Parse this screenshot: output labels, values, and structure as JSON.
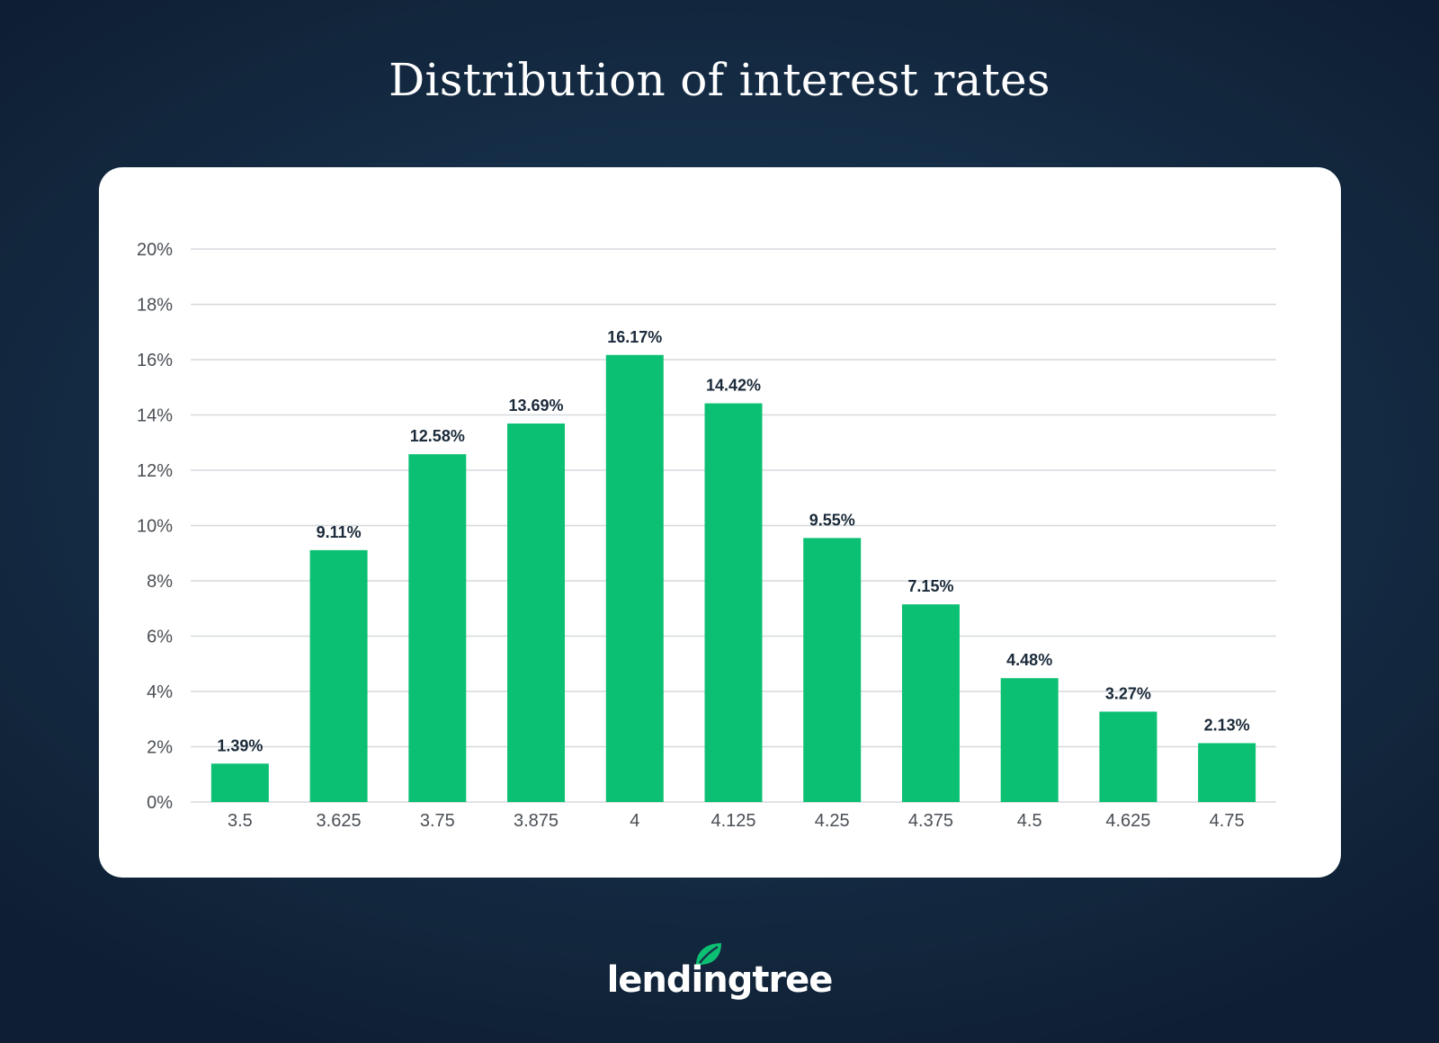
{
  "header": {
    "title": "Distribution of interest rates"
  },
  "brand": {
    "logo_text": "lendingtree",
    "logo_icon": "leaf-icon",
    "accent_color": "#0cc073"
  },
  "chart_data": {
    "type": "bar",
    "categories": [
      "3.5",
      "3.625",
      "3.75",
      "3.875",
      "4",
      "4.125",
      "4.25",
      "4.375",
      "4.5",
      "4.625",
      "4.75"
    ],
    "values": [
      1.39,
      9.11,
      12.58,
      13.69,
      16.17,
      14.42,
      9.55,
      7.15,
      4.48,
      3.27,
      2.13
    ],
    "data_labels": [
      "1.39%",
      "9.11%",
      "12.58%",
      "13.69%",
      "16.17%",
      "14.42%",
      "9.55%",
      "7.15%",
      "4.48%",
      "3.27%",
      "2.13%"
    ],
    "y_ticks": [
      0,
      2,
      4,
      6,
      8,
      10,
      12,
      14,
      16,
      18,
      20
    ],
    "y_tick_labels": [
      "0%",
      "2%",
      "4%",
      "6%",
      "8%",
      "10%",
      "12%",
      "14%",
      "16%",
      "18%",
      "20%"
    ],
    "ylim": [
      0,
      20
    ],
    "xlabel": "",
    "ylabel": "",
    "grid": true,
    "bar_color": "#0cc073"
  }
}
